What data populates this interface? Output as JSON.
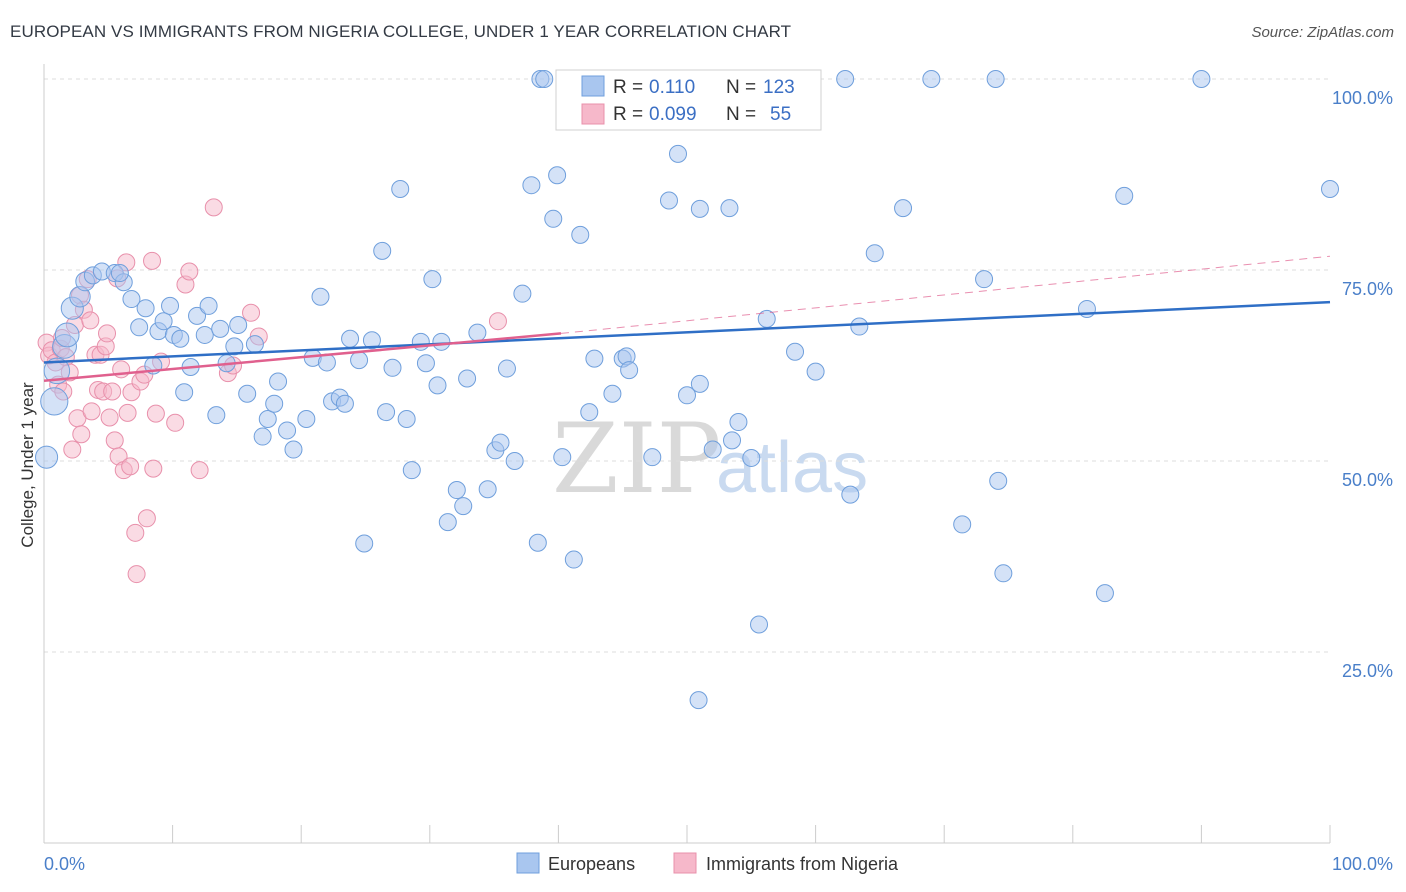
{
  "title": "EUROPEAN VS IMMIGRANTS FROM NIGERIA COLLEGE, UNDER 1 YEAR CORRELATION CHART",
  "source": "Source: ZipAtlas.com",
  "watermark": {
    "part1": "ZIP",
    "part2": "atlas"
  },
  "colors": {
    "blue_fill": "#a9c6ef",
    "blue_stroke": "#6f9fdc",
    "blue_line": "#2f6fc6",
    "pink_fill": "#f6b8ca",
    "pink_stroke": "#e890ab",
    "pink_line": "#e0608e",
    "grid": "#dddddd",
    "tick_text": "#4a7fc9"
  },
  "legend": {
    "rows": [
      {
        "r_label": "R =",
        "r_value": "0.110",
        "n_label": "N =",
        "n_value": "123"
      },
      {
        "r_label": "R =",
        "r_value": "0.099",
        "n_label": "N =",
        "n_value": "55"
      }
    ]
  },
  "chart_data": {
    "type": "scatter",
    "title": "EUROPEAN VS IMMIGRANTS FROM NIGERIA COLLEGE, UNDER 1 YEAR CORRELATION CHART",
    "xlabel": "",
    "ylabel": "College, Under 1 year",
    "xlim": [
      0,
      100
    ],
    "ylim": [
      0,
      102
    ],
    "x_tick_labels": [
      "0.0%",
      "100.0%"
    ],
    "y_tick_labels": [
      {
        "value": 25,
        "label": "25.0%"
      },
      {
        "value": 50,
        "label": "50.0%"
      },
      {
        "value": 75,
        "label": "75.0%"
      },
      {
        "value": 100,
        "label": "100.0%"
      }
    ],
    "series": [
      {
        "name": "Europeans",
        "r": 0.11,
        "n": 123,
        "trend": {
          "x": [
            0,
            100
          ],
          "y": [
            62.9,
            70.8
          ]
        },
        "points": [
          {
            "x": 0.2,
            "y": 50.5,
            "s": 1.3
          },
          {
            "x": 0.8,
            "y": 57.8,
            "s": 1.6
          },
          {
            "x": 1.0,
            "y": 61.8,
            "s": 1.5
          },
          {
            "x": 1.6,
            "y": 65.0,
            "s": 1.4
          },
          {
            "x": 1.8,
            "y": 66.5,
            "s": 1.4
          },
          {
            "x": 2.2,
            "y": 70.0,
            "s": 1.3
          },
          {
            "x": 2.8,
            "y": 71.5,
            "s": 1.2
          },
          {
            "x": 3.2,
            "y": 73.5,
            "s": 1.1
          },
          {
            "x": 3.8,
            "y": 74.3,
            "s": 1.0
          },
          {
            "x": 4.5,
            "y": 74.8,
            "s": 1.0
          },
          {
            "x": 5.5,
            "y": 74.6,
            "s": 1.0
          },
          {
            "x": 6.2,
            "y": 73.4,
            "s": 1.0
          },
          {
            "x": 6.8,
            "y": 71.2,
            "s": 1.0
          },
          {
            "x": 7.4,
            "y": 67.5,
            "s": 1.0
          },
          {
            "x": 7.9,
            "y": 70.0,
            "s": 1.0
          },
          {
            "x": 8.5,
            "y": 62.5,
            "s": 1.0
          },
          {
            "x": 8.9,
            "y": 67.0,
            "s": 1.0
          },
          {
            "x": 9.3,
            "y": 68.3,
            "s": 1.0
          },
          {
            "x": 9.8,
            "y": 70.3,
            "s": 1.0
          },
          {
            "x": 10.1,
            "y": 66.5,
            "s": 1.0
          },
          {
            "x": 10.9,
            "y": 59.0,
            "s": 1.0
          },
          {
            "x": 11.4,
            "y": 62.3,
            "s": 1.0
          },
          {
            "x": 11.9,
            "y": 69.0,
            "s": 1.0
          },
          {
            "x": 12.5,
            "y": 66.5,
            "s": 1.0
          },
          {
            "x": 12.8,
            "y": 70.3,
            "s": 1.0
          },
          {
            "x": 13.4,
            "y": 56.0,
            "s": 1.0
          },
          {
            "x": 13.7,
            "y": 67.3,
            "s": 1.0
          },
          {
            "x": 14.2,
            "y": 62.8,
            "s": 1.0
          },
          {
            "x": 14.8,
            "y": 65.0,
            "s": 1.0
          },
          {
            "x": 15.1,
            "y": 67.8,
            "s": 1.0
          },
          {
            "x": 15.8,
            "y": 58.8,
            "s": 1.0
          },
          {
            "x": 16.4,
            "y": 65.3,
            "s": 1.0
          },
          {
            "x": 17.0,
            "y": 53.2,
            "s": 1.0
          },
          {
            "x": 17.4,
            "y": 55.5,
            "s": 1.0
          },
          {
            "x": 17.9,
            "y": 57.5,
            "s": 1.0
          },
          {
            "x": 18.2,
            "y": 60.4,
            "s": 1.0
          },
          {
            "x": 18.9,
            "y": 54.0,
            "s": 1.0
          },
          {
            "x": 19.4,
            "y": 51.5,
            "s": 1.0
          },
          {
            "x": 20.4,
            "y": 55.5,
            "s": 1.0
          },
          {
            "x": 20.9,
            "y": 63.5,
            "s": 1.0
          },
          {
            "x": 21.5,
            "y": 71.5,
            "s": 1.0
          },
          {
            "x": 22.0,
            "y": 62.9,
            "s": 1.0
          },
          {
            "x": 22.4,
            "y": 57.8,
            "s": 1.0
          },
          {
            "x": 23.0,
            "y": 58.3,
            "s": 1.0
          },
          {
            "x": 23.4,
            "y": 57.5,
            "s": 1.0
          },
          {
            "x": 23.8,
            "y": 66.0,
            "s": 1.0
          },
          {
            "x": 24.5,
            "y": 63.2,
            "s": 1.0
          },
          {
            "x": 24.9,
            "y": 39.2,
            "s": 1.0
          },
          {
            "x": 25.5,
            "y": 65.8,
            "s": 1.0
          },
          {
            "x": 26.3,
            "y": 77.5,
            "s": 1.0
          },
          {
            "x": 26.6,
            "y": 56.4,
            "s": 1.0
          },
          {
            "x": 27.1,
            "y": 62.2,
            "s": 1.0
          },
          {
            "x": 27.7,
            "y": 85.6,
            "s": 1.0
          },
          {
            "x": 28.2,
            "y": 55.5,
            "s": 1.0
          },
          {
            "x": 28.6,
            "y": 48.8,
            "s": 1.0
          },
          {
            "x": 29.3,
            "y": 65.6,
            "s": 1.0
          },
          {
            "x": 29.7,
            "y": 62.8,
            "s": 1.0
          },
          {
            "x": 30.2,
            "y": 73.8,
            "s": 1.0
          },
          {
            "x": 30.6,
            "y": 59.9,
            "s": 1.0
          },
          {
            "x": 30.9,
            "y": 65.6,
            "s": 1.0
          },
          {
            "x": 31.4,
            "y": 42.0,
            "s": 1.0
          },
          {
            "x": 32.1,
            "y": 46.2,
            "s": 1.0
          },
          {
            "x": 32.6,
            "y": 44.1,
            "s": 1.0
          },
          {
            "x": 32.9,
            "y": 60.8,
            "s": 1.0
          },
          {
            "x": 33.7,
            "y": 66.8,
            "s": 1.0
          },
          {
            "x": 34.5,
            "y": 46.3,
            "s": 1.0
          },
          {
            "x": 35.1,
            "y": 51.4,
            "s": 1.0
          },
          {
            "x": 35.5,
            "y": 52.4,
            "s": 1.0
          },
          {
            "x": 36.0,
            "y": 62.1,
            "s": 1.0
          },
          {
            "x": 36.6,
            "y": 50.0,
            "s": 1.0
          },
          {
            "x": 37.2,
            "y": 71.9,
            "s": 1.0
          },
          {
            "x": 37.9,
            "y": 86.1,
            "s": 1.0
          },
          {
            "x": 38.4,
            "y": 39.3,
            "s": 1.0
          },
          {
            "x": 38.6,
            "y": 100.0,
            "s": 1.0
          },
          {
            "x": 38.9,
            "y": 100.0,
            "s": 1.0
          },
          {
            "x": 39.6,
            "y": 81.7,
            "s": 1.0
          },
          {
            "x": 39.9,
            "y": 87.4,
            "s": 1.0
          },
          {
            "x": 40.3,
            "y": 50.5,
            "s": 1.0
          },
          {
            "x": 41.2,
            "y": 37.1,
            "s": 1.0
          },
          {
            "x": 41.7,
            "y": 79.6,
            "s": 1.0
          },
          {
            "x": 42.4,
            "y": 56.4,
            "s": 1.0
          },
          {
            "x": 42.8,
            "y": 63.4,
            "s": 1.0
          },
          {
            "x": 43.3,
            "y": 100.0,
            "s": 1.0
          },
          {
            "x": 44.2,
            "y": 58.8,
            "s": 1.0
          },
          {
            "x": 45.0,
            "y": 63.4,
            "s": 1.0
          },
          {
            "x": 45.3,
            "y": 63.7,
            "s": 1.0
          },
          {
            "x": 47.3,
            "y": 50.5,
            "s": 1.0
          },
          {
            "x": 48.6,
            "y": 84.1,
            "s": 1.0
          },
          {
            "x": 49.3,
            "y": 90.2,
            "s": 1.0
          },
          {
            "x": 50.0,
            "y": 58.6,
            "s": 1.0
          },
          {
            "x": 50.6,
            "y": 100.0,
            "s": 1.0
          },
          {
            "x": 51.0,
            "y": 83.0,
            "s": 1.0
          },
          {
            "x": 51.0,
            "y": 60.1,
            "s": 1.0
          },
          {
            "x": 52.0,
            "y": 51.5,
            "s": 1.0
          },
          {
            "x": 53.3,
            "y": 83.1,
            "s": 1.0
          },
          {
            "x": 53.5,
            "y": 52.7,
            "s": 1.0
          },
          {
            "x": 54.0,
            "y": 55.1,
            "s": 1.0
          },
          {
            "x": 55.0,
            "y": 50.4,
            "s": 1.0
          },
          {
            "x": 55.6,
            "y": 28.6,
            "s": 1.0
          },
          {
            "x": 56.2,
            "y": 68.6,
            "s": 1.0
          },
          {
            "x": 56.8,
            "y": 100.0,
            "s": 1.0
          },
          {
            "x": 58.4,
            "y": 64.3,
            "s": 1.0
          },
          {
            "x": 60.0,
            "y": 61.7,
            "s": 1.0
          },
          {
            "x": 62.3,
            "y": 100.0,
            "s": 1.0
          },
          {
            "x": 62.7,
            "y": 45.6,
            "s": 1.0
          },
          {
            "x": 63.4,
            "y": 67.6,
            "s": 1.0
          },
          {
            "x": 64.6,
            "y": 77.2,
            "s": 1.0
          },
          {
            "x": 66.8,
            "y": 83.1,
            "s": 1.0
          },
          {
            "x": 69.0,
            "y": 100.0,
            "s": 1.0
          },
          {
            "x": 71.4,
            "y": 41.7,
            "s": 1.0
          },
          {
            "x": 73.1,
            "y": 73.8,
            "s": 1.0
          },
          {
            "x": 74.0,
            "y": 100.0,
            "s": 1.0
          },
          {
            "x": 74.2,
            "y": 47.4,
            "s": 1.0
          },
          {
            "x": 74.6,
            "y": 35.3,
            "s": 1.0
          },
          {
            "x": 81.1,
            "y": 69.9,
            "s": 1.0
          },
          {
            "x": 82.5,
            "y": 32.7,
            "s": 1.0
          },
          {
            "x": 84.0,
            "y": 84.7,
            "s": 1.0
          },
          {
            "x": 90.0,
            "y": 100.0,
            "s": 1.0
          },
          {
            "x": 100.0,
            "y": 85.6,
            "s": 1.0
          },
          {
            "x": 50.9,
            "y": 18.7,
            "s": 1.0
          },
          {
            "x": 45.5,
            "y": 61.9,
            "s": 1.0
          },
          {
            "x": 5.9,
            "y": 74.6,
            "s": 1.0
          },
          {
            "x": 10.6,
            "y": 66.0,
            "s": 1.0
          }
        ]
      },
      {
        "name": "Immigrants from Nigeria",
        "r": 0.099,
        "n": 55,
        "trend": {
          "x": [
            0,
            40.2
          ],
          "y": [
            60.5,
            66.7
          ]
        },
        "trend_dashed": {
          "x": [
            40.2,
            100
          ],
          "y": [
            66.7,
            76.8
          ]
        },
        "points": [
          {
            "x": 0.2,
            "y": 65.5,
            "s": 1.0
          },
          {
            "x": 0.4,
            "y": 63.8,
            "s": 1.0
          },
          {
            "x": 0.6,
            "y": 64.5,
            "s": 1.0
          },
          {
            "x": 0.9,
            "y": 62.9,
            "s": 1.0
          },
          {
            "x": 1.1,
            "y": 60.0,
            "s": 1.0
          },
          {
            "x": 1.3,
            "y": 64.7,
            "s": 1.0
          },
          {
            "x": 1.5,
            "y": 59.1,
            "s": 1.0
          },
          {
            "x": 1.7,
            "y": 63.6,
            "s": 1.0
          },
          {
            "x": 2.0,
            "y": 61.6,
            "s": 1.0
          },
          {
            "x": 2.2,
            "y": 51.5,
            "s": 1.0
          },
          {
            "x": 2.4,
            "y": 67.8,
            "s": 1.0
          },
          {
            "x": 2.6,
            "y": 55.6,
            "s": 1.0
          },
          {
            "x": 2.8,
            "y": 71.7,
            "s": 1.0
          },
          {
            "x": 2.9,
            "y": 53.5,
            "s": 1.0
          },
          {
            "x": 3.1,
            "y": 69.8,
            "s": 1.0
          },
          {
            "x": 3.4,
            "y": 73.8,
            "s": 1.0
          },
          {
            "x": 3.6,
            "y": 68.4,
            "s": 1.0
          },
          {
            "x": 3.7,
            "y": 56.5,
            "s": 1.0
          },
          {
            "x": 4.0,
            "y": 63.9,
            "s": 1.0
          },
          {
            "x": 4.2,
            "y": 59.3,
            "s": 1.0
          },
          {
            "x": 4.4,
            "y": 63.9,
            "s": 1.0
          },
          {
            "x": 4.6,
            "y": 59.1,
            "s": 1.0
          },
          {
            "x": 4.8,
            "y": 65.0,
            "s": 1.0
          },
          {
            "x": 4.9,
            "y": 66.7,
            "s": 1.0
          },
          {
            "x": 5.1,
            "y": 55.7,
            "s": 1.0
          },
          {
            "x": 5.3,
            "y": 59.1,
            "s": 1.0
          },
          {
            "x": 5.5,
            "y": 52.7,
            "s": 1.0
          },
          {
            "x": 5.7,
            "y": 73.9,
            "s": 1.0
          },
          {
            "x": 5.8,
            "y": 50.6,
            "s": 1.0
          },
          {
            "x": 6.0,
            "y": 62.0,
            "s": 1.0
          },
          {
            "x": 6.2,
            "y": 48.8,
            "s": 1.0
          },
          {
            "x": 6.4,
            "y": 76.0,
            "s": 1.0
          },
          {
            "x": 6.5,
            "y": 56.3,
            "s": 1.0
          },
          {
            "x": 6.7,
            "y": 49.3,
            "s": 1.0
          },
          {
            "x": 6.8,
            "y": 59.0,
            "s": 1.0
          },
          {
            "x": 7.1,
            "y": 40.6,
            "s": 1.0
          },
          {
            "x": 7.2,
            "y": 35.2,
            "s": 1.0
          },
          {
            "x": 7.5,
            "y": 60.4,
            "s": 1.0
          },
          {
            "x": 7.8,
            "y": 61.3,
            "s": 1.0
          },
          {
            "x": 8.0,
            "y": 42.5,
            "s": 1.0
          },
          {
            "x": 8.4,
            "y": 76.2,
            "s": 1.0
          },
          {
            "x": 8.5,
            "y": 49.0,
            "s": 1.0
          },
          {
            "x": 8.7,
            "y": 56.2,
            "s": 1.0
          },
          {
            "x": 9.1,
            "y": 63.0,
            "s": 1.0
          },
          {
            "x": 10.2,
            "y": 55.0,
            "s": 1.0
          },
          {
            "x": 11.0,
            "y": 73.1,
            "s": 1.0
          },
          {
            "x": 11.3,
            "y": 74.8,
            "s": 1.0
          },
          {
            "x": 12.1,
            "y": 48.8,
            "s": 1.0
          },
          {
            "x": 13.2,
            "y": 83.2,
            "s": 1.0
          },
          {
            "x": 14.3,
            "y": 61.5,
            "s": 1.0
          },
          {
            "x": 14.7,
            "y": 62.5,
            "s": 1.0
          },
          {
            "x": 16.1,
            "y": 69.4,
            "s": 1.0
          },
          {
            "x": 16.7,
            "y": 66.3,
            "s": 1.0
          },
          {
            "x": 35.3,
            "y": 68.3,
            "s": 1.0
          },
          {
            "x": 1.4,
            "y": 66.1,
            "s": 1.0
          }
        ]
      }
    ],
    "legend_bottom": [
      "Europeans",
      "Immigrants from Nigeria"
    ]
  }
}
